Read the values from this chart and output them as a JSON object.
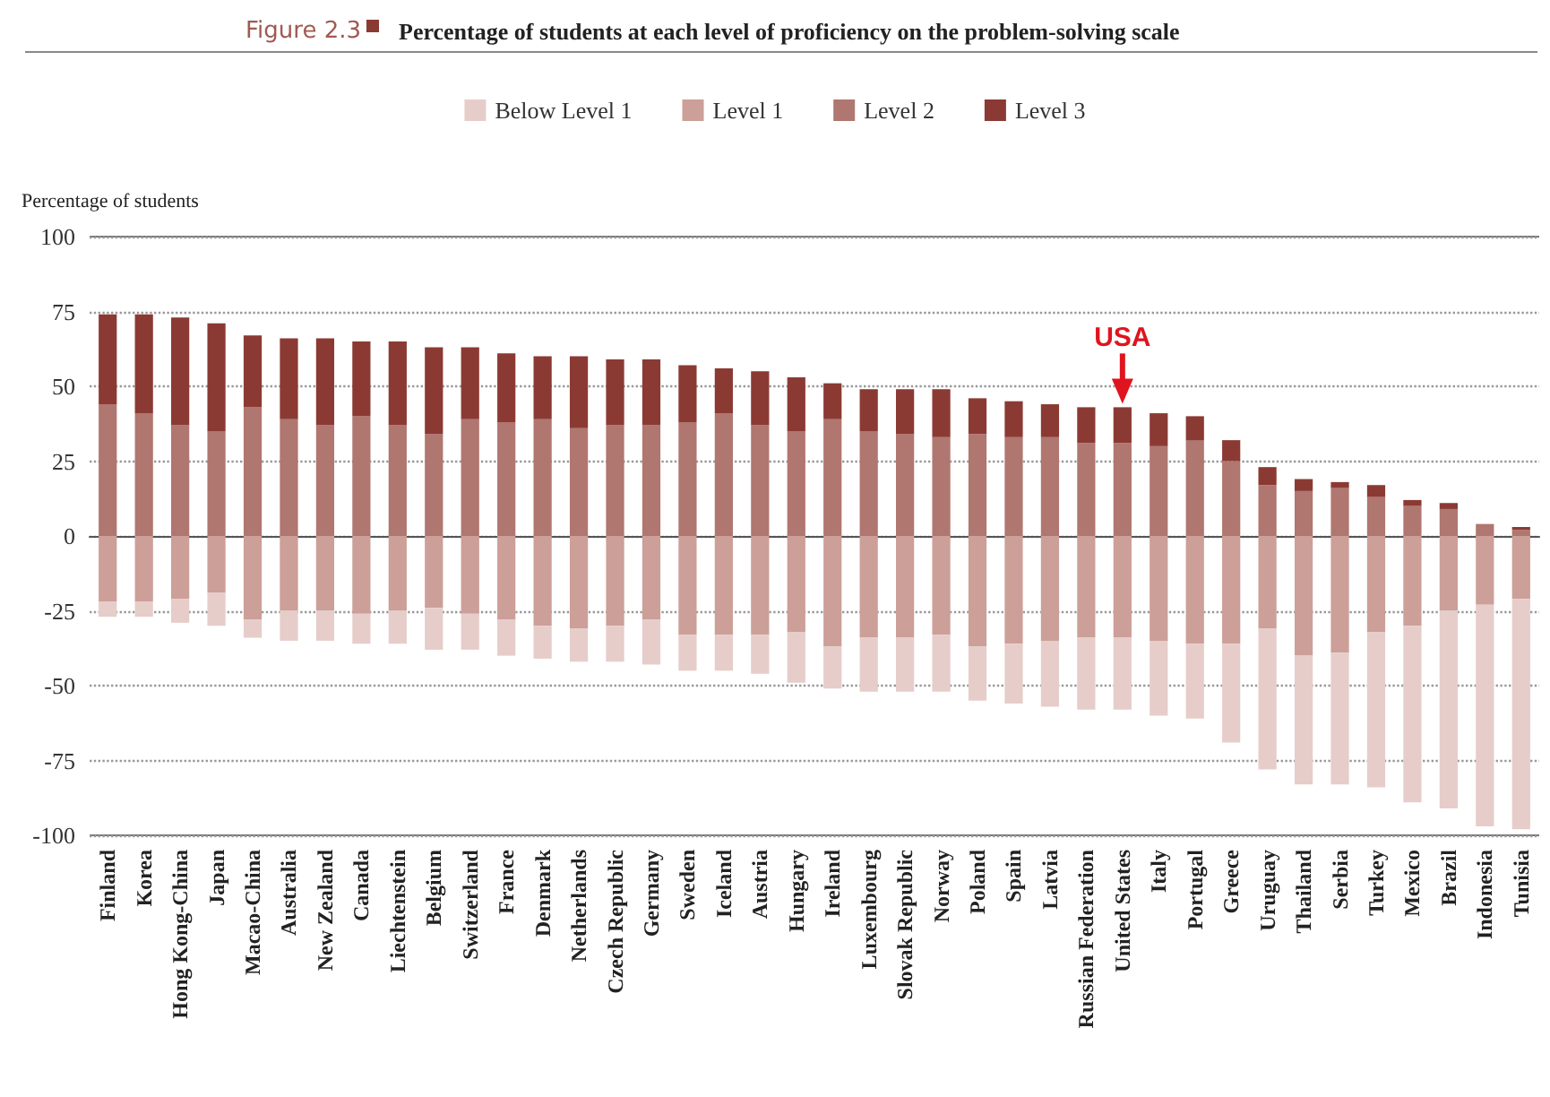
{
  "chart_data": {
    "type": "bar",
    "stacked": true,
    "title": "Figure 2.3",
    "subtitle": "Percentage of students at each level of proficiency on the problem-solving scale",
    "ylabel": "Percentage of students",
    "categories": [
      "Finland",
      "Korea",
      "Hong Kong-China",
      "Japan",
      "Macao-China",
      "Australia",
      "New Zealand",
      "Canada",
      "Liechtenstein",
      "Belgium",
      "Switzerland",
      "France",
      "Denmark",
      "Netherlands",
      "Czech Republic",
      "Germany",
      "Sweden",
      "Iceland",
      "Austria",
      "Hungary",
      "Ireland",
      "Luxembourg",
      "Slovak Republic",
      "Norway",
      "Poland",
      "Spain",
      "Latvia",
      "Russian Federation",
      "United States",
      "Italy",
      "Portugal",
      "Greece",
      "Uruguay",
      "Thailand",
      "Serbia",
      "Turkey",
      "Mexico",
      "Brazil",
      "Indonesia",
      "Tunisia"
    ],
    "series": [
      {
        "name": "Level 1",
        "color": "#cc9f98",
        "values": [
          -22,
          -22,
          -21,
          -19,
          -28,
          -25,
          -25,
          -26,
          -25,
          -24,
          -26,
          -28,
          -30,
          -31,
          -30,
          -28,
          -33,
          -33,
          -33,
          -32,
          -37,
          -34,
          -34,
          -33,
          -37,
          -36,
          -35,
          -34,
          -34,
          -35,
          -36,
          -36,
          -31,
          -40,
          -39,
          -32,
          -30,
          -25,
          -23,
          -21
        ]
      },
      {
        "name": "Level 2",
        "color": "#b07670",
        "values": [
          44,
          41,
          37,
          35,
          43,
          39,
          37,
          40,
          37,
          34,
          39,
          38,
          39,
          36,
          37,
          37,
          38,
          41,
          37,
          35,
          39,
          35,
          34,
          33,
          34,
          33,
          33,
          31,
          31,
          30,
          32,
          25,
          17,
          15,
          16,
          13,
          10,
          9,
          4,
          2
        ]
      },
      {
        "name": "Level 3",
        "color": "#8b3a33",
        "values": [
          30,
          33,
          36,
          36,
          24,
          27,
          29,
          25,
          28,
          29,
          24,
          23,
          21,
          24,
          22,
          22,
          19,
          15,
          18,
          18,
          12,
          14,
          15,
          16,
          12,
          12,
          11,
          12,
          12,
          11,
          8,
          7,
          6,
          4,
          2,
          4,
          2,
          2,
          0,
          1
        ]
      },
      {
        "name": "Below Level 1",
        "color": "#e6cdc9",
        "values": [
          -5,
          -5,
          -8,
          -11,
          -6,
          -10,
          -10,
          -10,
          -11,
          -14,
          -12,
          -12,
          -11,
          -11,
          -12,
          -15,
          -12,
          -12,
          -13,
          -17,
          -14,
          -18,
          -18,
          -19,
          -18,
          -20,
          -22,
          -24,
          -24,
          -25,
          -25,
          -33,
          -47,
          -43,
          -44,
          -52,
          -59,
          -66,
          -74,
          -77
        ]
      }
    ],
    "ylim": [
      -100,
      100
    ],
    "yticks": [
      -100,
      -75,
      -50,
      -25,
      0,
      25,
      50,
      75,
      100
    ],
    "grid": "y",
    "legend": "top",
    "annotations": [
      {
        "text": "USA",
        "x": "United States",
        "y": 43
      }
    ]
  }
}
